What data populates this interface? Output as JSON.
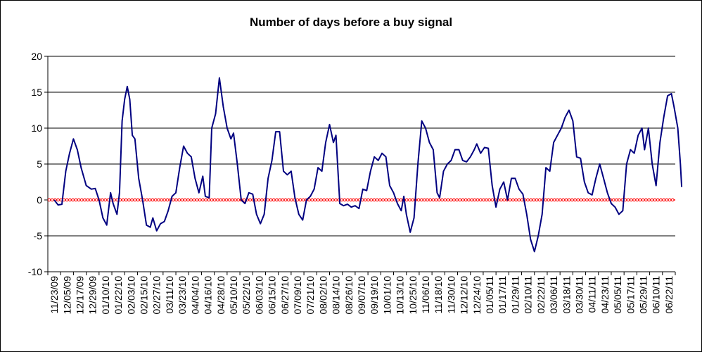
{
  "chart_data": {
    "type": "line",
    "title": "Number of days before a buy signal",
    "xlabel": "",
    "ylabel": "",
    "ylim": [
      -10,
      20
    ],
    "yticks": [
      -10,
      -5,
      0,
      5,
      10,
      15,
      20
    ],
    "grid": true,
    "legend": "none",
    "categories": [
      "11/23/09",
      "12/05/09",
      "12/17/09",
      "12/29/09",
      "01/10/10",
      "01/22/10",
      "02/03/10",
      "02/15/10",
      "02/27/10",
      "03/11/10",
      "03/23/10",
      "04/04/10",
      "04/16/10",
      "04/28/10",
      "05/10/10",
      "05/22/10",
      "06/03/10",
      "06/15/10",
      "06/27/10",
      "07/09/10",
      "07/21/10",
      "08/02/10",
      "08/14/10",
      "08/26/10",
      "09/07/10",
      "09/19/10",
      "10/01/10",
      "10/13/10",
      "10/25/10",
      "11/06/10",
      "11/18/10",
      "11/30/10",
      "12/12/10",
      "12/24/10",
      "01/05/11",
      "01/17/11",
      "01/29/11",
      "02/10/11",
      "02/22/11",
      "03/06/11",
      "03/18/11",
      "03/30/11",
      "04/11/11",
      "04/23/11",
      "05/05/11",
      "05/17/11",
      "05/29/11",
      "06/10/11",
      "06/22/11"
    ],
    "series": [
      {
        "color": "#000080",
        "points": [
          [
            0,
            0
          ],
          [
            0.3,
            -0.7
          ],
          [
            0.6,
            -0.6
          ],
          [
            0.9,
            4
          ],
          [
            1.2,
            6.5
          ],
          [
            1.5,
            8.5
          ],
          [
            1.8,
            7
          ],
          [
            2.1,
            4.5
          ],
          [
            2.5,
            2
          ],
          [
            2.9,
            1.5
          ],
          [
            3.2,
            1.6
          ],
          [
            3.5,
            0
          ],
          [
            3.8,
            -2.5
          ],
          [
            4.1,
            -3.5
          ],
          [
            4.4,
            1
          ],
          [
            4.6,
            -0.5
          ],
          [
            4.9,
            -2
          ],
          [
            5.1,
            1
          ],
          [
            5.3,
            11
          ],
          [
            5.5,
            14
          ],
          [
            5.7,
            15.8
          ],
          [
            5.9,
            14
          ],
          [
            6.1,
            9
          ],
          [
            6.3,
            8.5
          ],
          [
            6.6,
            3
          ],
          [
            6.9,
            0
          ],
          [
            7.2,
            -3.5
          ],
          [
            7.5,
            -3.8
          ],
          [
            7.7,
            -2.5
          ],
          [
            8.0,
            -4.3
          ],
          [
            8.3,
            -3.3
          ],
          [
            8.6,
            -3
          ],
          [
            8.9,
            -1.5
          ],
          [
            9.2,
            0.5
          ],
          [
            9.5,
            1
          ],
          [
            9.8,
            4.5
          ],
          [
            10.1,
            7.5
          ],
          [
            10.4,
            6.5
          ],
          [
            10.7,
            6
          ],
          [
            11.0,
            3
          ],
          [
            11.3,
            1
          ],
          [
            11.6,
            3.3
          ],
          [
            11.8,
            0.5
          ],
          [
            12.1,
            0.3
          ],
          [
            12.3,
            10
          ],
          [
            12.6,
            12
          ],
          [
            12.9,
            17
          ],
          [
            13.2,
            13
          ],
          [
            13.5,
            10
          ],
          [
            13.8,
            8.5
          ],
          [
            14.0,
            9.3
          ],
          [
            14.3,
            5
          ],
          [
            14.6,
            0
          ],
          [
            14.9,
            -0.5
          ],
          [
            15.2,
            1
          ],
          [
            15.5,
            0.8
          ],
          [
            15.8,
            -2
          ],
          [
            16.1,
            -3.3
          ],
          [
            16.4,
            -2
          ],
          [
            16.7,
            3
          ],
          [
            17.0,
            5.5
          ],
          [
            17.3,
            9.5
          ],
          [
            17.6,
            9.5
          ],
          [
            17.9,
            4
          ],
          [
            18.2,
            3.5
          ],
          [
            18.5,
            4
          ],
          [
            18.8,
            0.3
          ],
          [
            19.1,
            -2
          ],
          [
            19.4,
            -2.8
          ],
          [
            19.7,
            0
          ],
          [
            20.0,
            0.5
          ],
          [
            20.3,
            1.5
          ],
          [
            20.6,
            4.5
          ],
          [
            20.9,
            4
          ],
          [
            21.2,
            8
          ],
          [
            21.5,
            10.5
          ],
          [
            21.8,
            8
          ],
          [
            22.0,
            9
          ],
          [
            22.3,
            -0.5
          ],
          [
            22.6,
            -0.8
          ],
          [
            22.9,
            -0.6
          ],
          [
            23.2,
            -1
          ],
          [
            23.5,
            -0.8
          ],
          [
            23.8,
            -1.2
          ],
          [
            24.1,
            1.5
          ],
          [
            24.4,
            1.3
          ],
          [
            24.7,
            4
          ],
          [
            25.0,
            6
          ],
          [
            25.3,
            5.5
          ],
          [
            25.6,
            6.5
          ],
          [
            25.9,
            6
          ],
          [
            26.2,
            2
          ],
          [
            26.5,
            1
          ],
          [
            26.8,
            -0.5
          ],
          [
            27.1,
            -1.5
          ],
          [
            27.3,
            0.5
          ],
          [
            27.5,
            -2
          ],
          [
            27.8,
            -4.5
          ],
          [
            28.1,
            -2.5
          ],
          [
            28.4,
            5
          ],
          [
            28.7,
            11
          ],
          [
            29.0,
            10
          ],
          [
            29.3,
            8
          ],
          [
            29.6,
            7
          ],
          [
            29.9,
            1
          ],
          [
            30.1,
            0.3
          ],
          [
            30.4,
            4
          ],
          [
            30.7,
            5
          ],
          [
            31.0,
            5.5
          ],
          [
            31.3,
            7
          ],
          [
            31.6,
            7
          ],
          [
            31.9,
            5.5
          ],
          [
            32.2,
            5.3
          ],
          [
            32.5,
            6
          ],
          [
            32.8,
            7
          ],
          [
            33.0,
            7.8
          ],
          [
            33.3,
            6.5
          ],
          [
            33.6,
            7.3
          ],
          [
            33.9,
            7.2
          ],
          [
            34.2,
            2
          ],
          [
            34.5,
            -1
          ],
          [
            34.8,
            1.5
          ],
          [
            35.1,
            2.5
          ],
          [
            35.4,
            0
          ],
          [
            35.7,
            3
          ],
          [
            36.0,
            3
          ],
          [
            36.3,
            1.5
          ],
          [
            36.6,
            0.8
          ],
          [
            36.9,
            -2
          ],
          [
            37.2,
            -5.5
          ],
          [
            37.5,
            -7.2
          ],
          [
            37.8,
            -5
          ],
          [
            38.1,
            -2
          ],
          [
            38.4,
            4.5
          ],
          [
            38.7,
            4
          ],
          [
            39.0,
            8
          ],
          [
            39.3,
            9
          ],
          [
            39.6,
            10
          ],
          [
            39.9,
            11.5
          ],
          [
            40.2,
            12.5
          ],
          [
            40.5,
            11
          ],
          [
            40.8,
            6
          ],
          [
            41.1,
            5.8
          ],
          [
            41.4,
            2.5
          ],
          [
            41.7,
            1
          ],
          [
            42.0,
            0.7
          ],
          [
            42.3,
            3
          ],
          [
            42.6,
            5
          ],
          [
            42.9,
            3
          ],
          [
            43.2,
            1
          ],
          [
            43.5,
            -0.5
          ],
          [
            43.8,
            -1
          ],
          [
            44.1,
            -2
          ],
          [
            44.4,
            -1.5
          ],
          [
            44.7,
            5
          ],
          [
            45.0,
            7
          ],
          [
            45.3,
            6.5
          ],
          [
            45.6,
            9
          ],
          [
            45.9,
            10
          ],
          [
            46.1,
            7
          ],
          [
            46.4,
            10
          ],
          [
            46.7,
            5
          ],
          [
            47.0,
            2
          ],
          [
            47.3,
            8
          ],
          [
            47.6,
            11.5
          ],
          [
            47.9,
            14.5
          ],
          [
            48.2,
            14.8
          ],
          [
            48.4,
            13
          ],
          [
            48.7,
            10
          ],
          [
            48.9,
            5
          ],
          [
            49.0,
            1.8
          ]
        ]
      },
      {
        "name": "",
        "color": "#ff0000",
        "y_constant": 0,
        "style": "dotted-markers"
      }
    ]
  }
}
